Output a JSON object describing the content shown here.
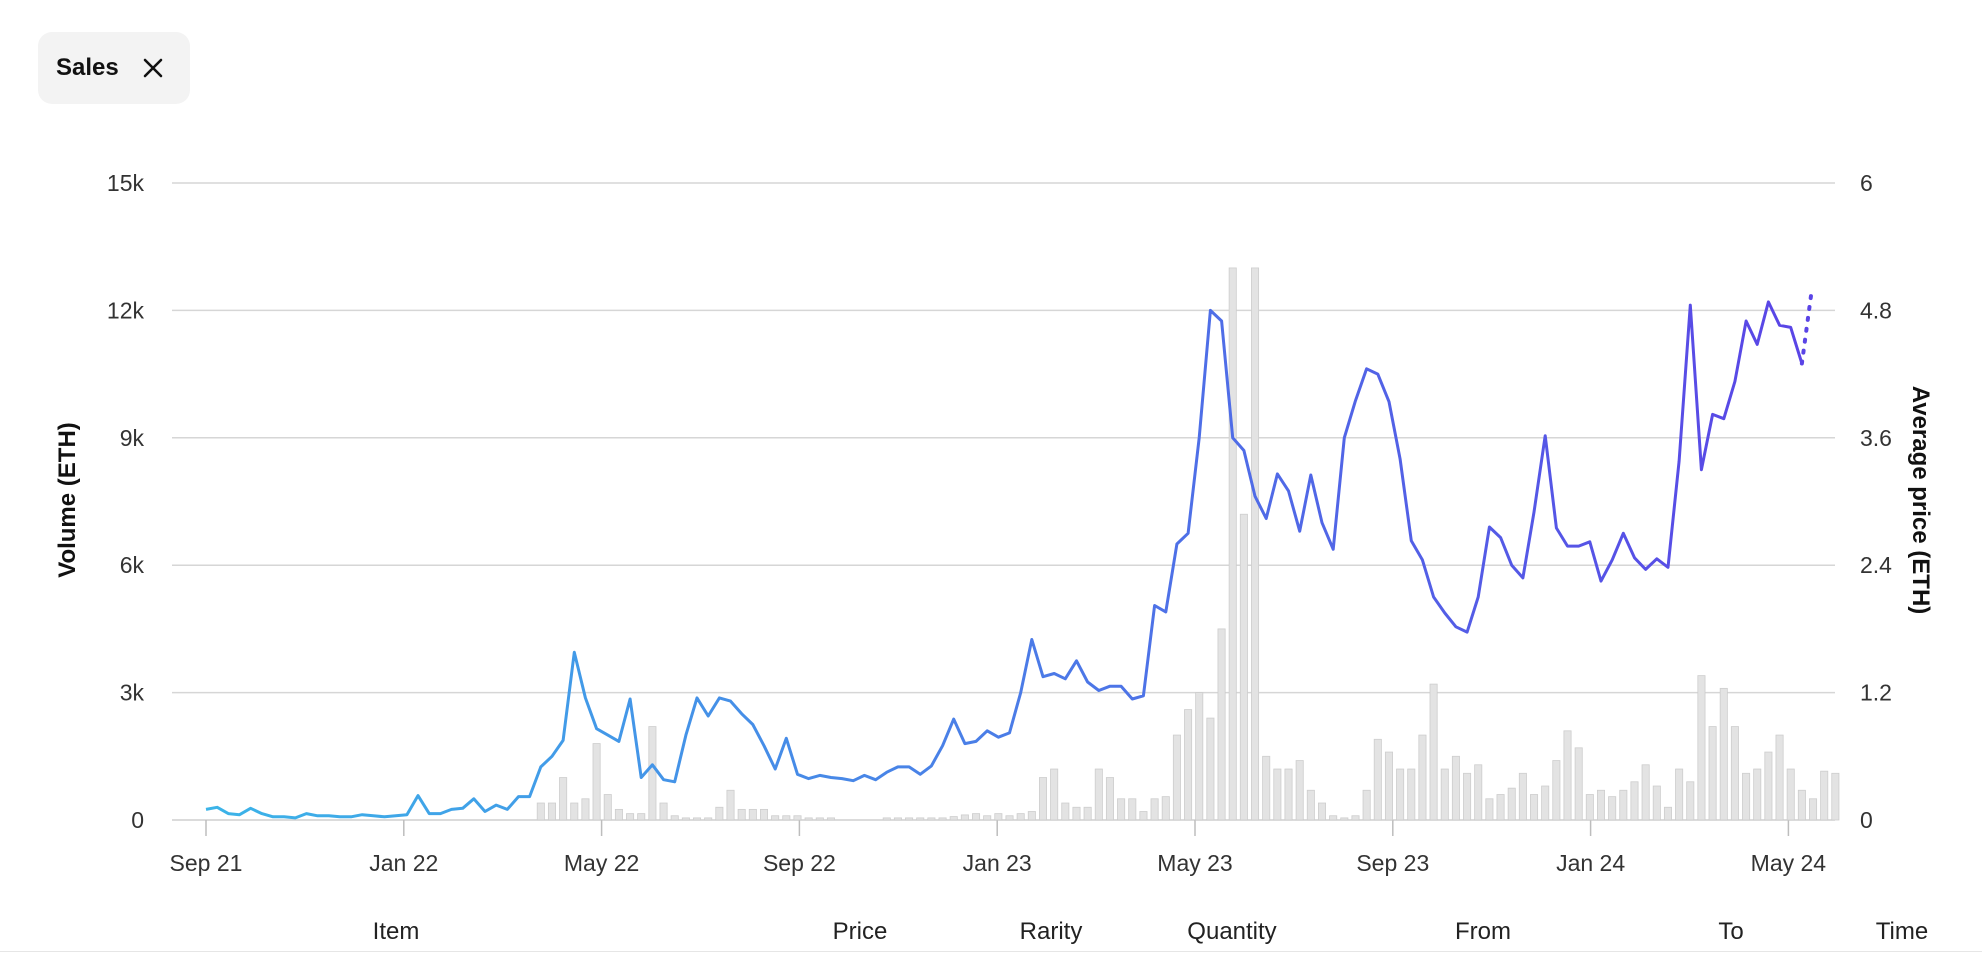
{
  "filter_chip": {
    "label": "Sales",
    "close_icon": "close-icon"
  },
  "table_columns": [
    "Item",
    "Price",
    "Rarity",
    "Quantity",
    "From",
    "To",
    "Time"
  ],
  "chart_data": {
    "type": "bar",
    "title": "",
    "x_tick_labels": [
      "Sep 21",
      "Jan 22",
      "May 22",
      "Sep 22",
      "Jan 23",
      "May 23",
      "Sep 23",
      "Jan 24",
      "May 24"
    ],
    "y_left": {
      "label": "Volume (ETH)",
      "ticks": [
        "0",
        "3k",
        "6k",
        "9k",
        "12k",
        "15k"
      ],
      "range": [
        0,
        15000
      ]
    },
    "y_right": {
      "label": "Average price (ETH)",
      "ticks": [
        "0",
        "1.2",
        "2.4",
        "3.6",
        "4.8",
        "6"
      ],
      "range": [
        0,
        6
      ]
    },
    "grid": true,
    "series": [
      {
        "kind": "bar",
        "axis": "left",
        "color": "#e3e3e3",
        "values": [
          0,
          0,
          0,
          0,
          0,
          0,
          0,
          0,
          0,
          0,
          0,
          0,
          0,
          0,
          0,
          0,
          0,
          0,
          0,
          0,
          0,
          0,
          0,
          0,
          0,
          0,
          0,
          0,
          0,
          0,
          400,
          400,
          1000,
          400,
          500,
          1800,
          600,
          250,
          150,
          150,
          2200,
          400,
          100,
          50,
          50,
          50,
          300,
          700,
          250,
          250,
          250,
          100,
          100,
          100,
          50,
          50,
          50,
          0,
          0,
          0,
          0,
          50,
          50,
          50,
          50,
          50,
          50,
          80,
          120,
          150,
          100,
          150,
          100,
          150,
          200,
          1000,
          1200,
          400,
          300,
          300,
          1200,
          1000,
          500,
          500,
          200,
          500,
          550,
          2000,
          2600,
          3000,
          2400,
          4500,
          13000,
          7200,
          13000,
          1500,
          1200,
          1200,
          1400,
          700,
          400,
          100,
          50,
          100,
          700,
          1900,
          1600,
          1200,
          1200,
          2000,
          3200,
          1200,
          1500,
          1100,
          1300,
          500,
          600,
          750,
          1100,
          600,
          800,
          1400,
          2100,
          1700,
          600,
          700,
          550,
          700,
          900,
          1300,
          800,
          300,
          1200,
          900,
          3400,
          2200,
          3100,
          2200,
          1100,
          1200,
          1600,
          2000,
          1200,
          700,
          500,
          1150,
          1100
        ]
      },
      {
        "kind": "line",
        "axis": "right",
        "color_start": "#3bb5e8",
        "color_end": "#5a44e6",
        "values": [
          0.1,
          0.12,
          0.06,
          0.05,
          0.11,
          0.06,
          0.03,
          0.03,
          0.02,
          0.06,
          0.04,
          0.04,
          0.03,
          0.03,
          0.05,
          0.04,
          0.03,
          0.04,
          0.05,
          0.23,
          0.06,
          0.06,
          0.1,
          0.11,
          0.2,
          0.08,
          0.14,
          0.1,
          0.22,
          0.22,
          0.5,
          0.6,
          0.75,
          1.58,
          1.15,
          0.86,
          0.8,
          0.74,
          1.14,
          0.4,
          0.52,
          0.38,
          0.36,
          0.8,
          1.15,
          0.98,
          1.15,
          1.12,
          1.0,
          0.9,
          0.7,
          0.48,
          0.77,
          0.43,
          0.39,
          0.42,
          0.4,
          0.39,
          0.37,
          0.42,
          0.38,
          0.45,
          0.5,
          0.5,
          0.43,
          0.51,
          0.7,
          0.95,
          0.72,
          0.74,
          0.84,
          0.78,
          0.82,
          1.2,
          1.7,
          1.35,
          1.38,
          1.33,
          1.5,
          1.3,
          1.22,
          1.26,
          1.26,
          1.14,
          1.17,
          2.02,
          1.96,
          2.6,
          2.7,
          3.6,
          4.8,
          4.7,
          3.6,
          3.48,
          3.05,
          2.84,
          3.26,
          3.1,
          2.72,
          3.25,
          2.8,
          2.55,
          3.6,
          3.95,
          4.25,
          4.2,
          3.94,
          3.4,
          2.63,
          2.45,
          2.1,
          1.95,
          1.82,
          1.77,
          2.1,
          2.76,
          2.66,
          2.4,
          2.28,
          2.9,
          3.62,
          2.75,
          2.58,
          2.58,
          2.62,
          2.25,
          2.45,
          2.7,
          2.47,
          2.36,
          2.46,
          2.38,
          3.38,
          4.85,
          3.3,
          3.82,
          3.78,
          4.13,
          4.7,
          4.48,
          4.88,
          4.66,
          4.64,
          4.3
        ],
        "projected": [
          4.3,
          5.0
        ]
      }
    ]
  }
}
